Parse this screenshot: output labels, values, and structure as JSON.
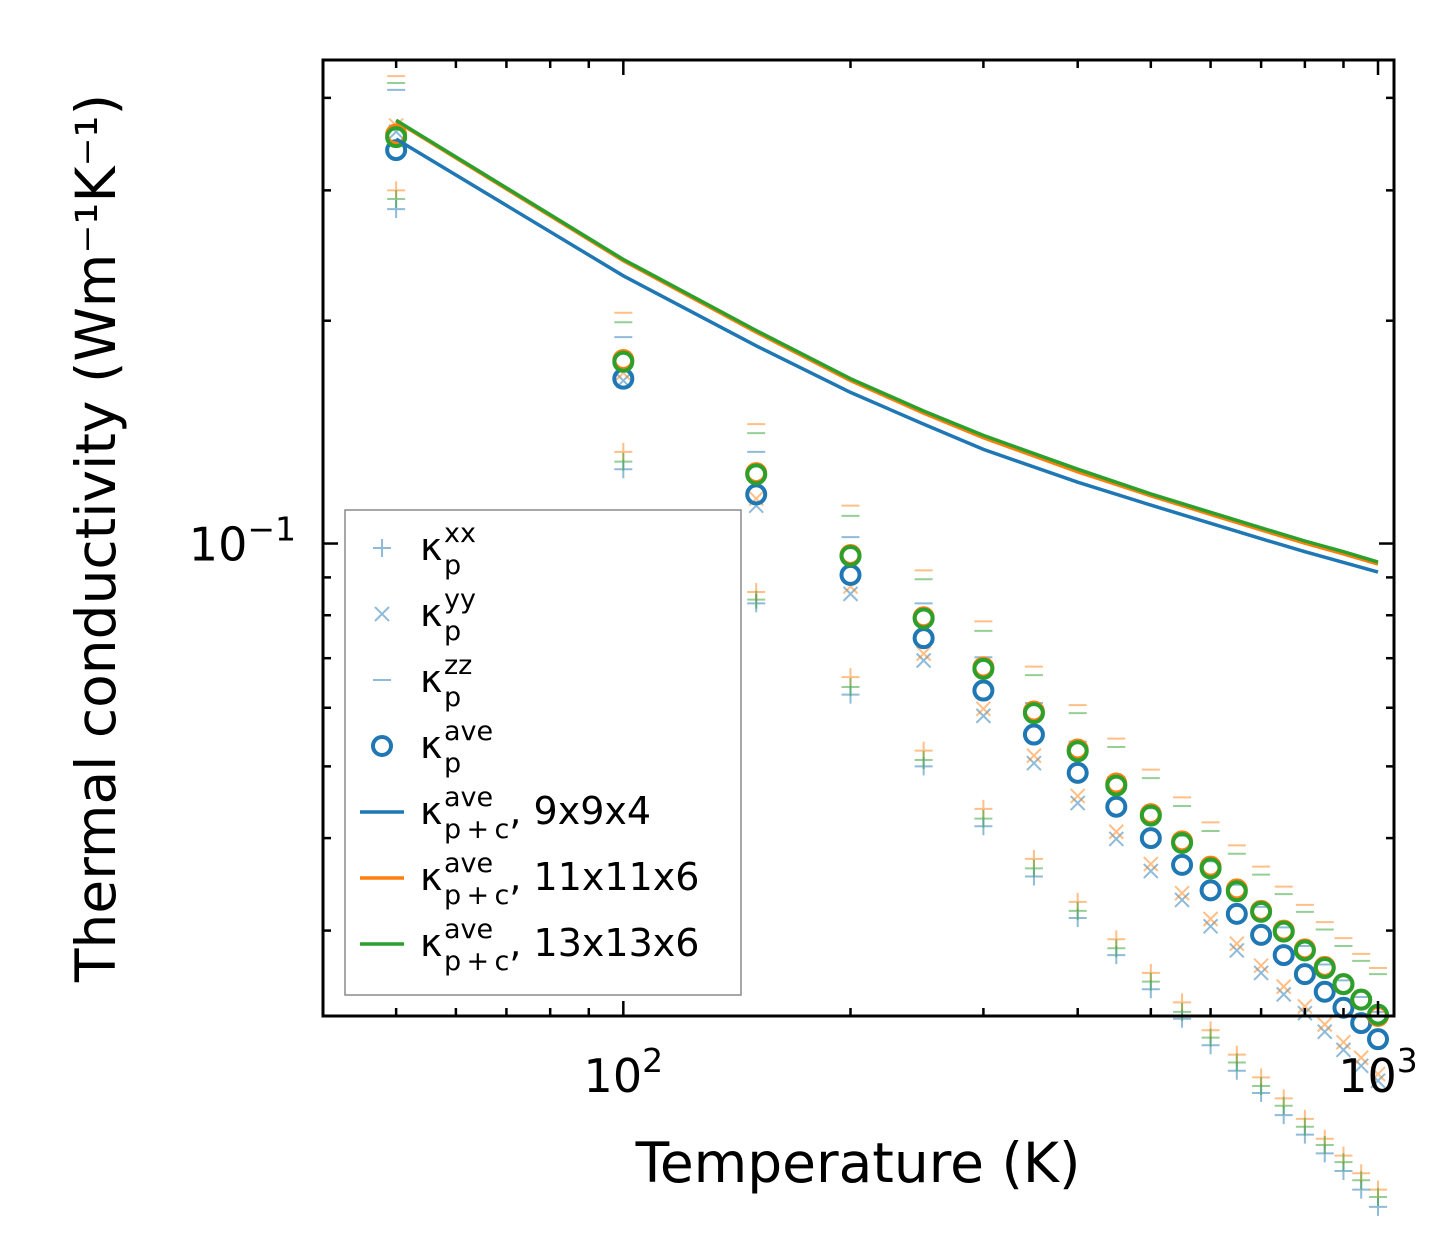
{
  "chart_data": {
    "type": "scatter",
    "scale": {
      "x": "log",
      "y": "log"
    },
    "xlabel": "Temperature (K)",
    "ylabel": "Thermal conductivity (Wm⁻¹K⁻¹)",
    "xlim": [
      40,
      1050
    ],
    "ylim": [
      0.023,
      0.45
    ],
    "x_tick_labels": [
      {
        "value": 100,
        "base": "10",
        "exp": "2"
      },
      {
        "value": 1000,
        "base": "10",
        "exp": "3"
      }
    ],
    "y_tick_labels": [
      {
        "value": 0.1,
        "base": "10",
        "exp": "−1"
      }
    ],
    "x": [
      50,
      100,
      150,
      200,
      250,
      300,
      350,
      400,
      450,
      500,
      550,
      600,
      650,
      700,
      750,
      800,
      850,
      900,
      950,
      1000
    ],
    "colors": {
      "blue": "#1f77b4",
      "orange": "#ff7f0e",
      "green": "#2ca02c"
    },
    "series": [
      {
        "name": "kappa_p_xx",
        "kind": "plus",
        "color": "blue",
        "values": [
          0.283,
          0.126,
          0.083,
          0.0625,
          0.05,
          0.0415,
          0.0355,
          0.0312,
          0.0278,
          0.025,
          0.0228,
          0.021,
          0.0194,
          0.0181,
          0.0169,
          0.0159,
          0.015,
          0.0142,
          0.0134,
          0.0127
        ]
      },
      {
        "name": "kappa_p_xx_11",
        "kind": "plus",
        "color": "orange",
        "values": [
          0.3,
          0.133,
          0.086,
          0.066,
          0.0525,
          0.0438,
          0.0375,
          0.0328,
          0.0292,
          0.0263,
          0.024,
          0.022,
          0.0204,
          0.019,
          0.0178,
          0.0167,
          0.0157,
          0.0149,
          0.0141,
          0.0134
        ]
      },
      {
        "name": "kappa_p_xx_13",
        "kind": "plus",
        "color": "green",
        "values": [
          0.292,
          0.129,
          0.084,
          0.064,
          0.051,
          0.0425,
          0.0364,
          0.0319,
          0.0284,
          0.0256,
          0.0233,
          0.0215,
          0.0199,
          0.0185,
          0.0174,
          0.0163,
          0.0154,
          0.0146,
          0.0138,
          0.0131
        ]
      },
      {
        "name": "kappa_p_yy",
        "kind": "cross",
        "color": "blue",
        "values": [
          0.36,
          0.166,
          0.1125,
          0.0855,
          0.0695,
          0.0585,
          0.0505,
          0.0446,
          0.0399,
          0.0361,
          0.033,
          0.0304,
          0.0282,
          0.0263,
          0.0246,
          0.0232,
          0.0219,
          0.0207,
          0.0197,
          0.0188
        ]
      },
      {
        "name": "kappa_p_yy_11",
        "kind": "cross",
        "color": "orange",
        "values": [
          0.367,
          0.17,
          0.115,
          0.0875,
          0.071,
          0.0598,
          0.0517,
          0.0456,
          0.0408,
          0.0369,
          0.0337,
          0.0311,
          0.0288,
          0.0269,
          0.0252,
          0.0237,
          0.0224,
          0.0212,
          0.0202,
          0.0192
        ]
      },
      {
        "name": "kappa_p_zz",
        "kind": "dash",
        "color": "blue",
        "values": [
          0.41,
          0.19,
          0.133,
          0.102,
          0.083,
          0.0702,
          0.0609,
          0.054,
          0.0484,
          0.0439,
          0.0403,
          0.0372,
          0.0346,
          0.0323,
          0.0303,
          0.0286,
          0.027,
          0.0257,
          0.0244,
          0.0233
        ]
      },
      {
        "name": "kappa_p_zz_11",
        "kind": "dash",
        "color": "orange",
        "values": [
          0.428,
          0.205,
          0.145,
          0.1125,
          0.092,
          0.0785,
          0.0682,
          0.0605,
          0.0545,
          0.0495,
          0.0454,
          0.042,
          0.0391,
          0.0366,
          0.0344,
          0.0325,
          0.0308,
          0.0293,
          0.0279,
          0.0267
        ]
      },
      {
        "name": "kappa_p_zz_13",
        "kind": "dash",
        "color": "green",
        "values": [
          0.419,
          0.199,
          0.141,
          0.109,
          0.0895,
          0.0762,
          0.0664,
          0.059,
          0.0531,
          0.0482,
          0.0442,
          0.0409,
          0.0381,
          0.0357,
          0.0336,
          0.0318,
          0.0301,
          0.0286,
          0.0273,
          0.0262
        ]
      },
      {
        "name": "kappa_p_ave_9x9x4",
        "kind": "circle",
        "color": "blue",
        "values": [
          0.34,
          0.167,
          0.1165,
          0.0907,
          0.0745,
          0.0633,
          0.0552,
          0.049,
          0.0441,
          0.04,
          0.0368,
          0.034,
          0.0316,
          0.0296,
          0.0278,
          0.0262,
          0.0248,
          0.0236,
          0.0225,
          0.0214
        ]
      },
      {
        "name": "kappa_p_ave_11x11x6",
        "kind": "circle",
        "color": "orange",
        "values": [
          0.357,
          0.177,
          0.1245,
          0.0965,
          0.0795,
          0.068,
          0.0593,
          0.0527,
          0.0474,
          0.0431,
          0.0396,
          0.0366,
          0.0341,
          0.0319,
          0.03,
          0.0283,
          0.0268,
          0.0254,
          0.0242,
          0.023
        ]
      },
      {
        "name": "kappa_p_ave_13x13x6",
        "kind": "circle",
        "color": "green",
        "values": [
          0.354,
          0.176,
          0.124,
          0.0962,
          0.0792,
          0.0677,
          0.059,
          0.0524,
          0.0471,
          0.0429,
          0.0394,
          0.0364,
          0.0339,
          0.0318,
          0.0299,
          0.0282,
          0.0267,
          0.0254,
          0.0242,
          0.0231
        ]
      },
      {
        "name": "kappa_pc_ave_9x9x4",
        "kind": "line",
        "color": "blue",
        "x": [
          50,
          100,
          150,
          200,
          250,
          300,
          400,
          500,
          600,
          700,
          800,
          900,
          1000
        ],
        "values": [
          0.352,
          0.23,
          0.185,
          0.16,
          0.145,
          0.134,
          0.121,
          0.1127,
          0.1065,
          0.1015,
          0.0975,
          0.0943,
          0.0915
        ]
      },
      {
        "name": "kappa_pc_ave_11x11x6",
        "kind": "line",
        "color": "orange",
        "x": [
          50,
          100,
          150,
          200,
          250,
          300,
          400,
          500,
          600,
          700,
          800,
          900,
          1000
        ],
        "values": [
          0.372,
          0.241,
          0.193,
          0.166,
          0.15,
          0.139,
          0.125,
          0.116,
          0.1095,
          0.1043,
          0.1001,
          0.0968,
          0.0938
        ]
      },
      {
        "name": "kappa_pc_ave_13x13x6",
        "kind": "line",
        "color": "green",
        "x": [
          50,
          100,
          150,
          200,
          250,
          300,
          400,
          500,
          600,
          700,
          800,
          900,
          1000
        ],
        "values": [
          0.373,
          0.242,
          0.194,
          0.167,
          0.151,
          0.14,
          0.126,
          0.1167,
          0.1102,
          0.105,
          0.1008,
          0.0975,
          0.0944
        ]
      }
    ],
    "legend": {
      "position": "lower-left",
      "entries": [
        {
          "marker": "plus",
          "color": "blue",
          "base": "κ",
          "sub": "p",
          "sup": "xx",
          "suffix": ""
        },
        {
          "marker": "cross",
          "color": "blue",
          "base": "κ",
          "sub": "p",
          "sup": "yy",
          "suffix": ""
        },
        {
          "marker": "dash",
          "color": "blue",
          "base": "κ",
          "sub": "p",
          "sup": "zz",
          "suffix": ""
        },
        {
          "marker": "circle",
          "color": "blue",
          "base": "κ",
          "sub": "p",
          "sup": "ave",
          "suffix": ""
        },
        {
          "marker": "line",
          "color": "blue",
          "base": "κ",
          "sub": "p + c",
          "sup": "ave",
          "suffix": ", 9x9x4"
        },
        {
          "marker": "line",
          "color": "orange",
          "base": "κ",
          "sub": "p + c",
          "sup": "ave",
          "suffix": ", 11x11x6"
        },
        {
          "marker": "line",
          "color": "green",
          "base": "κ",
          "sub": "p + c",
          "sup": "ave",
          "suffix": ", 13x13x6"
        }
      ]
    }
  }
}
